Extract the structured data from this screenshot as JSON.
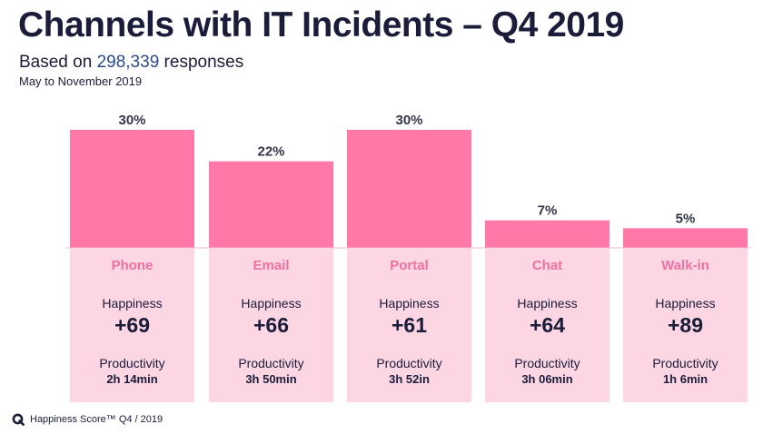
{
  "title": "Channels with IT Incidents – Q4 2019",
  "subtitle": {
    "prefix": "Based on ",
    "count": "298,339",
    "suffix": " responses"
  },
  "date_range": "May to November 2019",
  "colors": {
    "bar": "#ff78a8",
    "panel": "#fcd6e3",
    "channel_label": "#f070a0",
    "text": "#1a1c3a"
  },
  "chart_data": {
    "type": "bar",
    "title": "Channels with IT Incidents – Q4 2019",
    "xlabel": "",
    "ylabel": "",
    "unit": "%",
    "ylim": [
      0,
      30
    ],
    "categories": [
      "Phone",
      "Email",
      "Portal",
      "Chat",
      "Walk-in"
    ],
    "values": [
      30,
      22,
      30,
      7,
      5
    ],
    "value_labels": [
      "30%",
      "22%",
      "30%",
      "7%",
      "5%"
    ]
  },
  "channels": [
    {
      "name": "Phone",
      "happiness_label": "Happiness",
      "happiness": "+69",
      "productivity_label": "Productivity",
      "productivity": "2h 14min"
    },
    {
      "name": "Email",
      "happiness_label": "Happiness",
      "happiness": "+66",
      "productivity_label": "Productivity",
      "productivity": "3h 50min"
    },
    {
      "name": "Portal",
      "happiness_label": "Happiness",
      "happiness": "+61",
      "productivity_label": "Productivity",
      "productivity": "3h 52in"
    },
    {
      "name": "Chat",
      "happiness_label": "Happiness",
      "happiness": "+64",
      "productivity_label": "Productivity",
      "productivity": "3h 06min"
    },
    {
      "name": "Walk-in",
      "happiness_label": "Happiness",
      "happiness": "+89",
      "productivity_label": "Productivity",
      "productivity": "1h 6min"
    }
  ],
  "footer": {
    "logo_icon": "happiness-q-logo-icon",
    "text": "Happiness Score™ Q4 / 2019"
  }
}
